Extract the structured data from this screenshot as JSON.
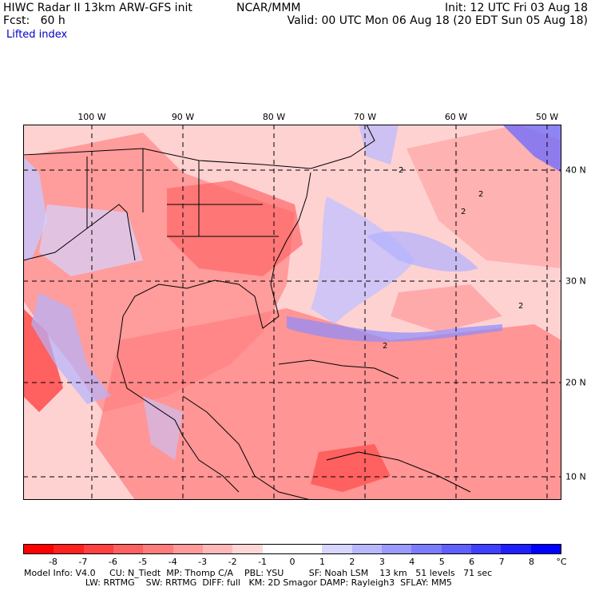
{
  "header": {
    "title_left": "HIWC Radar II 13km ARW-GFS init",
    "org": "NCAR/MMM",
    "init": "Init: 12 UTC Fri 03 Aug 18",
    "fcst": "Fcst:   60 h",
    "valid": "Valid: 00 UTC Mon 06 Aug 18 (20 EDT Sun 05 Aug 18)",
    "field": "Lifted index"
  },
  "map": {
    "longitude_labels": [
      "100 W",
      "90 W",
      "80 W",
      "70 W",
      "60 W",
      "50 W"
    ],
    "latitude_labels": [
      "40 N",
      "30 N",
      "20 N",
      "10 N"
    ],
    "contour_labels": [
      "2",
      "2",
      "2",
      "2",
      "2"
    ]
  },
  "colorbar": {
    "labels": [
      "-8",
      "-7",
      "-6",
      "-5",
      "-4",
      "-3",
      "-2",
      "-1",
      "0",
      "1",
      "2",
      "3",
      "4",
      "5",
      "6",
      "7",
      "8"
    ],
    "unit": "°C",
    "colors": [
      "#ff0000",
      "#ff2020",
      "#ff4040",
      "#ff6060",
      "#ff7c7c",
      "#ff9a9a",
      "#ffb8b8",
      "#ffd6d6",
      "#ffffff",
      "#ffffff",
      "#d6d6ff",
      "#b8b8ff",
      "#9a9aff",
      "#7c7cff",
      "#6060ff",
      "#4040ff",
      "#2020ff",
      "#0000ff"
    ]
  },
  "footer": {
    "line1": "Model Info: V4.0     CU: N_Tiedt  MP: Thomp C/A    PBL: YSU         SF: Noah LSM    13 km   51 levels   71 sec",
    "line2": "                      LW: RRTMG    SW: RRTMG  DIFF: full   KM: 2D Smagor DAMP: Rayleigh3  SFLAY: MM5"
  }
}
